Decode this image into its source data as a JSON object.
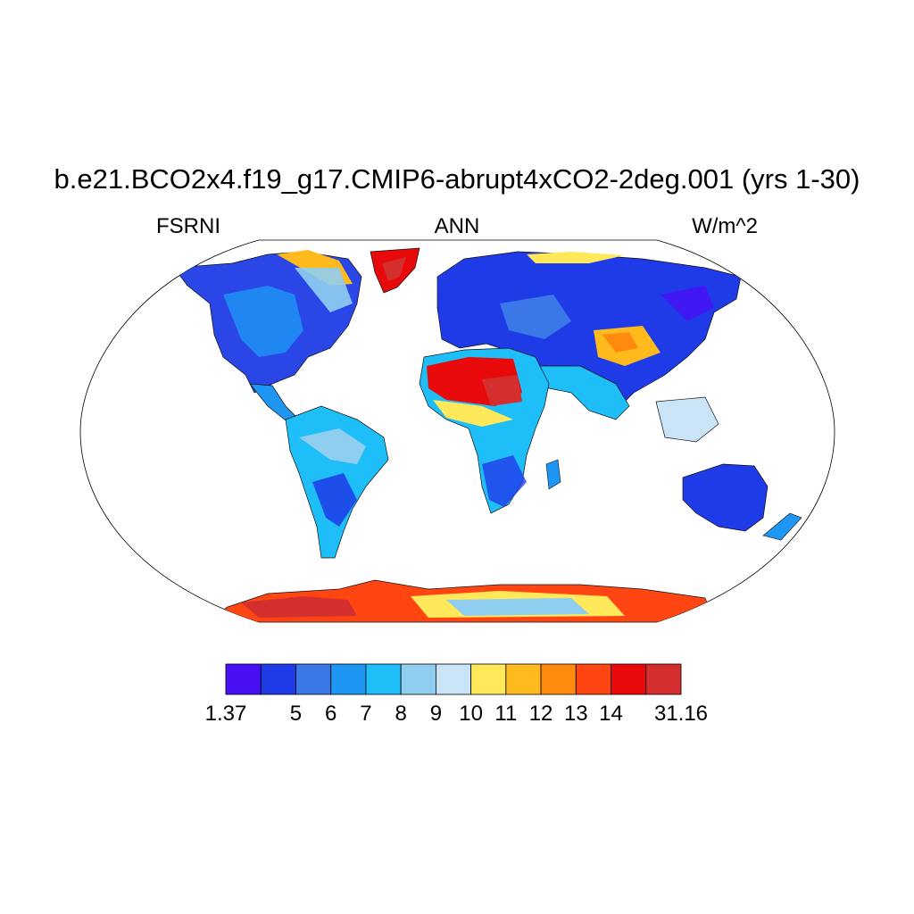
{
  "title": "b.e21.BCO2x4.f19_g17.CMIP6-abrupt4xCO2-2deg.001 (yrs 1-30)",
  "variable": "FSRNI",
  "season": "ANN",
  "units": "W/m^2",
  "colorbar": {
    "colors": [
      "#4a10f5",
      "#1f3be8",
      "#3a78e8",
      "#1e96f4",
      "#1ebef8",
      "#90cef0",
      "#c9e4f6",
      "#ffe95a",
      "#ffba1e",
      "#ff8a0e",
      "#ff4612",
      "#e80a0a",
      "#d52e2e"
    ],
    "labels": [
      "1.37",
      "",
      "5",
      "6",
      "7",
      "8",
      "9",
      "10",
      "11",
      "12",
      "13",
      "14",
      "",
      "31.16"
    ]
  },
  "icons": {
    "map": "world-map-robinson-projection"
  }
}
